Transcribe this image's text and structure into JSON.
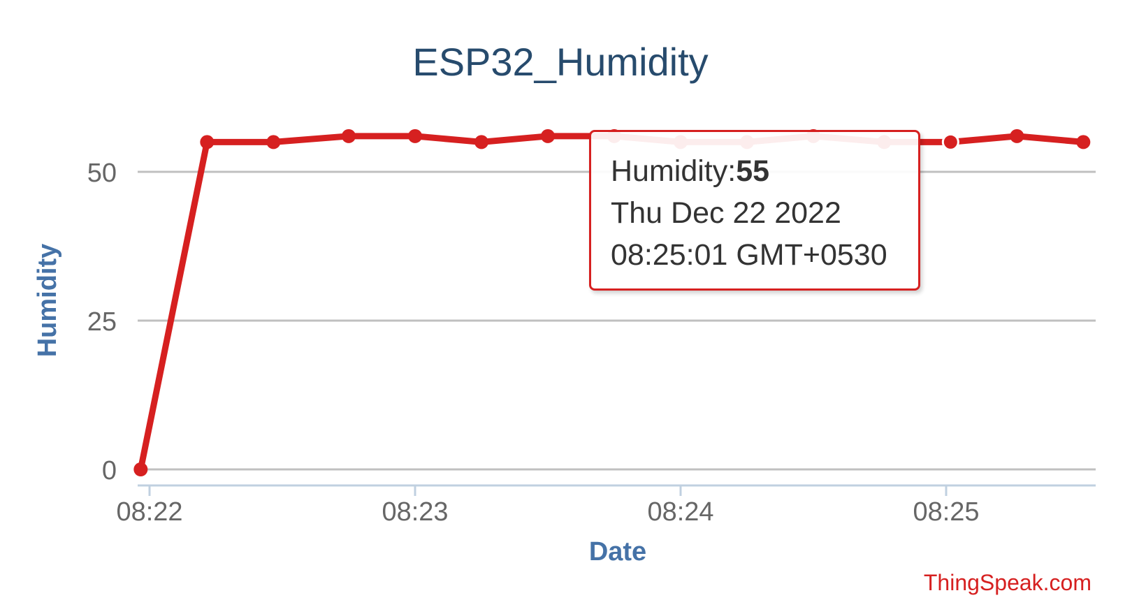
{
  "chart_data": {
    "type": "line",
    "title": "ESP32_Humidity",
    "xlabel": "Date",
    "ylabel": "Humidity",
    "ylim": [
      0,
      57
    ],
    "yticks": [
      0,
      25,
      50
    ],
    "xticks": [
      "08:22",
      "08:23",
      "08:24",
      "08:25"
    ],
    "grid": true,
    "legend": "none",
    "series": [
      {
        "x": [
          "08:21:58",
          "08:22:13",
          "08:22:28",
          "08:22:45",
          "08:23:00",
          "08:23:15",
          "08:23:30",
          "08:23:45",
          "08:24:00",
          "08:24:15",
          "08:24:30",
          "08:24:46",
          "08:25:01",
          "08:25:16",
          "08:25:31"
        ],
        "values": [
          0,
          55,
          55,
          56,
          56,
          55,
          56,
          56,
          55,
          55,
          56,
          55,
          55,
          56,
          55
        ],
        "color": "#d62020"
      }
    ],
    "highlighted_point_index": 12
  },
  "tooltip": {
    "series_label": "Humidity:",
    "value": "55",
    "date_line": "Thu Dec 22 2022",
    "time_line": "08:25:01 GMT+0530"
  },
  "credit": "ThingSpeak.com",
  "colors": {
    "line": "#d62020",
    "title": "#274b6d",
    "axis_label": "#4572a7",
    "tick_label": "#666666",
    "grid": "#c0c0c0",
    "axis_line": "#c0d0e0"
  }
}
